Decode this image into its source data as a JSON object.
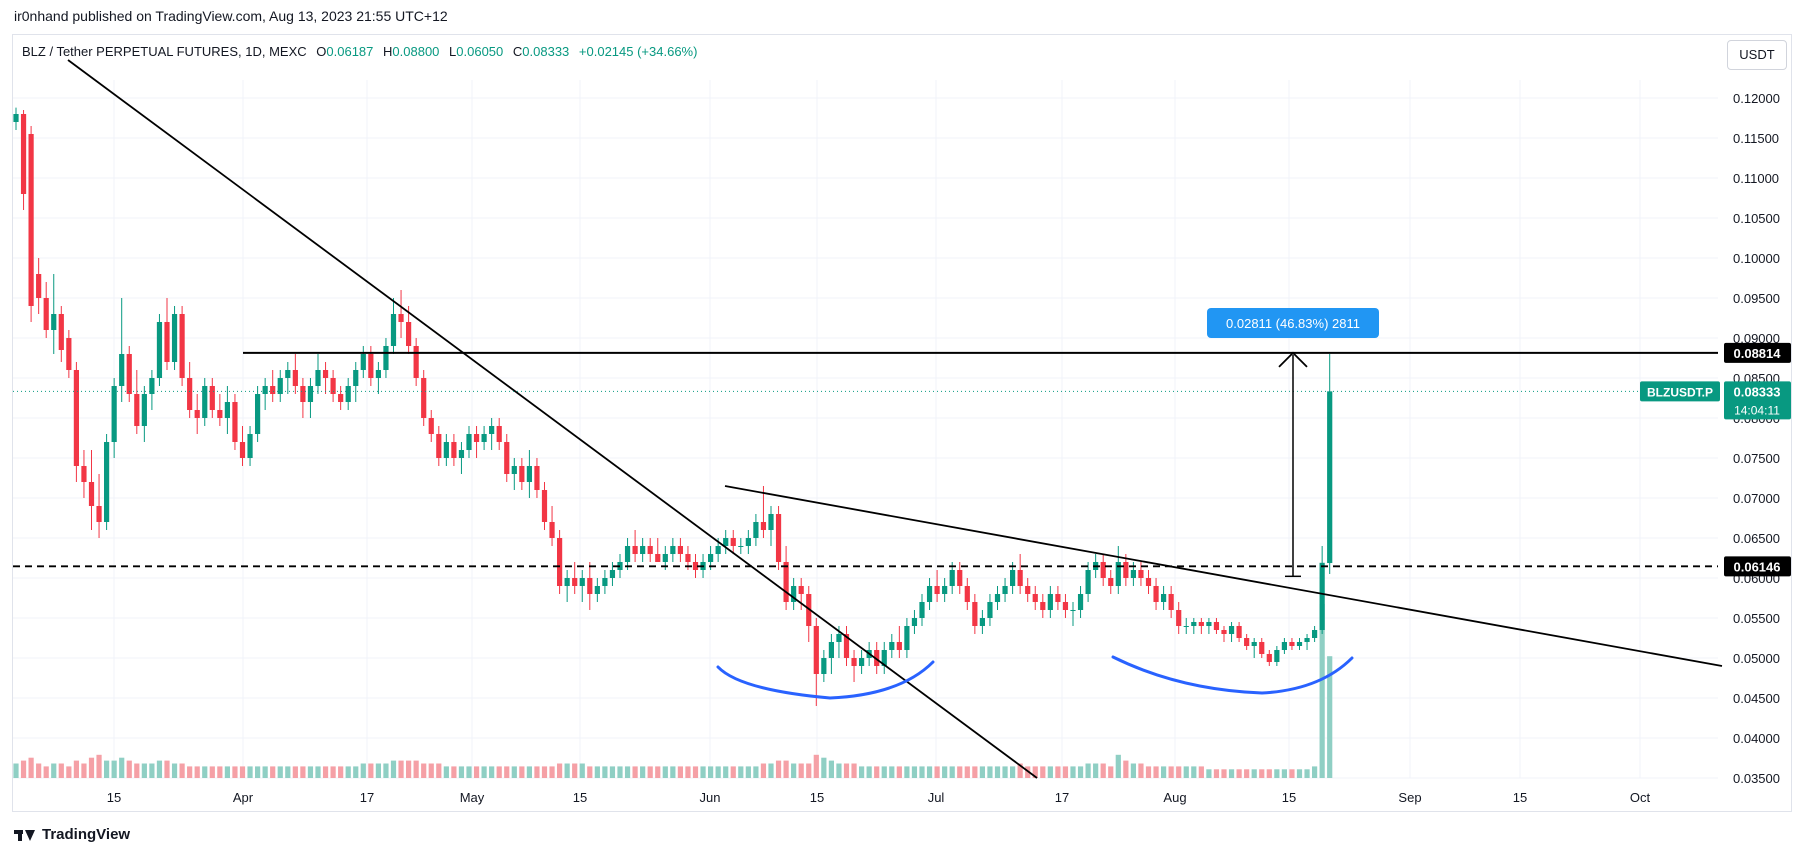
{
  "header": {
    "published": "ir0nhand published on TradingView.com, Aug 13, 2023 21:55 UTC+12"
  },
  "legend": {
    "symbol": "BLZ / Tether PERPETUAL FUTURES, 1D, MEXC",
    "open_label": "O",
    "open": "0.06187",
    "high_label": "H",
    "high": "0.08800",
    "low_label": "L",
    "low": "0.06050",
    "close_label": "C",
    "close": "0.08333",
    "change": "+0.02145 (+34.66%)"
  },
  "unit_button": "USDT",
  "footer": {
    "brand": "TradingView"
  },
  "colors": {
    "up": "#089981",
    "down": "#f23645",
    "up_vol": "#8fcfc4",
    "down_vol": "#f5a0a6",
    "trend": "#000000",
    "curve": "#2962ff",
    "measure": "#2196f3"
  },
  "chart_data": {
    "type": "candlestick",
    "ylim": [
      0.035,
      0.1225
    ],
    "y_ticks": [
      "0.12000",
      "0.11500",
      "0.11000",
      "0.10500",
      "0.10000",
      "0.09500",
      "0.09000",
      "0.08500",
      "0.08000",
      "0.07500",
      "0.07000",
      "0.06500",
      "0.06000",
      "0.05500",
      "0.05000",
      "0.04500",
      "0.04000",
      "0.03500"
    ],
    "x_ticks": [
      "15",
      "Apr",
      "17",
      "May",
      "15",
      "Jun",
      "15",
      "Jul",
      "17",
      "Aug",
      "15",
      "Sep",
      "15",
      "Oct"
    ],
    "price_labels": {
      "resistance": "0.08814",
      "support": "0.06146",
      "symbol_tag": "BLZUSDT.P",
      "last": "0.08333",
      "countdown": "14:04:11"
    },
    "measure_label": "0.02811 (46.83%) 2811",
    "candles": [
      [
        0.117,
        0.1188,
        0.116,
        0.118,
        5
      ],
      [
        0.118,
        0.1185,
        0.106,
        0.108,
        6
      ],
      [
        0.1155,
        0.1165,
        0.092,
        0.094,
        7
      ],
      [
        0.098,
        0.1,
        0.093,
        0.095,
        5
      ],
      [
        0.095,
        0.097,
        0.09,
        0.091,
        4
      ],
      [
        0.091,
        0.098,
        0.088,
        0.093,
        5
      ],
      [
        0.093,
        0.094,
        0.087,
        0.0885,
        5
      ],
      [
        0.09,
        0.091,
        0.085,
        0.086,
        4
      ],
      [
        0.086,
        0.087,
        0.072,
        0.074,
        6
      ],
      [
        0.074,
        0.076,
        0.07,
        0.072,
        5
      ],
      [
        0.072,
        0.076,
        0.066,
        0.069,
        7
      ],
      [
        0.069,
        0.073,
        0.065,
        0.067,
        8
      ],
      [
        0.067,
        0.078,
        0.066,
        0.077,
        6
      ],
      [
        0.077,
        0.085,
        0.075,
        0.084,
        6
      ],
      [
        0.084,
        0.095,
        0.082,
        0.088,
        7
      ],
      [
        0.088,
        0.089,
        0.082,
        0.083,
        6
      ],
      [
        0.083,
        0.086,
        0.078,
        0.079,
        5
      ],
      [
        0.079,
        0.084,
        0.077,
        0.083,
        5
      ],
      [
        0.083,
        0.086,
        0.081,
        0.085,
        5
      ],
      [
        0.085,
        0.093,
        0.084,
        0.092,
        6
      ],
      [
        0.092,
        0.095,
        0.086,
        0.087,
        6
      ],
      [
        0.087,
        0.094,
        0.086,
        0.093,
        5
      ],
      [
        0.093,
        0.094,
        0.084,
        0.085,
        5
      ],
      [
        0.085,
        0.087,
        0.08,
        0.081,
        4
      ],
      [
        0.081,
        0.083,
        0.078,
        0.08,
        4
      ],
      [
        0.08,
        0.085,
        0.079,
        0.084,
        4
      ],
      [
        0.084,
        0.085,
        0.08,
        0.081,
        4
      ],
      [
        0.081,
        0.083,
        0.079,
        0.08,
        4
      ],
      [
        0.08,
        0.084,
        0.078,
        0.082,
        4
      ],
      [
        0.082,
        0.083,
        0.076,
        0.077,
        4
      ],
      [
        0.077,
        0.079,
        0.074,
        0.075,
        4
      ],
      [
        0.075,
        0.079,
        0.074,
        0.078,
        4
      ],
      [
        0.078,
        0.084,
        0.077,
        0.083,
        4
      ],
      [
        0.083,
        0.085,
        0.081,
        0.084,
        4
      ],
      [
        0.084,
        0.086,
        0.082,
        0.083,
        4
      ],
      [
        0.083,
        0.086,
        0.082,
        0.085,
        4
      ],
      [
        0.085,
        0.087,
        0.083,
        0.086,
        4
      ],
      [
        0.086,
        0.088,
        0.083,
        0.084,
        4
      ],
      [
        0.084,
        0.085,
        0.08,
        0.082,
        4
      ],
      [
        0.082,
        0.085,
        0.08,
        0.084,
        4
      ],
      [
        0.084,
        0.088,
        0.083,
        0.086,
        4
      ],
      [
        0.086,
        0.087,
        0.083,
        0.085,
        4
      ],
      [
        0.085,
        0.086,
        0.082,
        0.083,
        4
      ],
      [
        0.083,
        0.084,
        0.081,
        0.082,
        4
      ],
      [
        0.082,
        0.085,
        0.081,
        0.084,
        4
      ],
      [
        0.084,
        0.087,
        0.082,
        0.086,
        4
      ],
      [
        0.086,
        0.089,
        0.085,
        0.088,
        5
      ],
      [
        0.088,
        0.089,
        0.084,
        0.085,
        5
      ],
      [
        0.085,
        0.087,
        0.083,
        0.086,
        5
      ],
      [
        0.086,
        0.09,
        0.085,
        0.089,
        5
      ],
      [
        0.089,
        0.095,
        0.088,
        0.093,
        6
      ],
      [
        0.093,
        0.096,
        0.09,
        0.092,
        6
      ],
      [
        0.092,
        0.094,
        0.088,
        0.089,
        6
      ],
      [
        0.089,
        0.09,
        0.084,
        0.085,
        6
      ],
      [
        0.085,
        0.086,
        0.079,
        0.08,
        5
      ],
      [
        0.08,
        0.081,
        0.077,
        0.078,
        5
      ],
      [
        0.078,
        0.079,
        0.074,
        0.075,
        5
      ],
      [
        0.075,
        0.078,
        0.074,
        0.077,
        4
      ],
      [
        0.077,
        0.078,
        0.074,
        0.075,
        4
      ],
      [
        0.075,
        0.077,
        0.073,
        0.076,
        4
      ],
      [
        0.076,
        0.079,
        0.075,
        0.078,
        4
      ],
      [
        0.078,
        0.079,
        0.075,
        0.077,
        4
      ],
      [
        0.077,
        0.079,
        0.076,
        0.078,
        4
      ],
      [
        0.078,
        0.08,
        0.076,
        0.079,
        4
      ],
      [
        0.079,
        0.08,
        0.076,
        0.077,
        4
      ],
      [
        0.077,
        0.078,
        0.072,
        0.073,
        4
      ],
      [
        0.073,
        0.075,
        0.071,
        0.074,
        4
      ],
      [
        0.074,
        0.075,
        0.071,
        0.072,
        4
      ],
      [
        0.072,
        0.076,
        0.07,
        0.074,
        4
      ],
      [
        0.074,
        0.075,
        0.07,
        0.071,
        4
      ],
      [
        0.071,
        0.072,
        0.066,
        0.067,
        4
      ],
      [
        0.067,
        0.069,
        0.064,
        0.065,
        4
      ],
      [
        0.065,
        0.066,
        0.058,
        0.059,
        5
      ],
      [
        0.059,
        0.061,
        0.057,
        0.06,
        5
      ],
      [
        0.06,
        0.062,
        0.058,
        0.059,
        5
      ],
      [
        0.059,
        0.061,
        0.057,
        0.06,
        5
      ],
      [
        0.06,
        0.062,
        0.056,
        0.058,
        4
      ],
      [
        0.058,
        0.06,
        0.057,
        0.059,
        4
      ],
      [
        0.059,
        0.061,
        0.058,
        0.06,
        4
      ],
      [
        0.06,
        0.062,
        0.059,
        0.061,
        4
      ],
      [
        0.061,
        0.063,
        0.06,
        0.062,
        4
      ],
      [
        0.062,
        0.065,
        0.061,
        0.064,
        4
      ],
      [
        0.064,
        0.066,
        0.062,
        0.063,
        4
      ],
      [
        0.063,
        0.065,
        0.062,
        0.064,
        4
      ],
      [
        0.064,
        0.065,
        0.062,
        0.063,
        4
      ],
      [
        0.063,
        0.065,
        0.062,
        0.062,
        4
      ],
      [
        0.062,
        0.064,
        0.061,
        0.063,
        4
      ],
      [
        0.063,
        0.065,
        0.062,
        0.064,
        4
      ],
      [
        0.064,
        0.065,
        0.062,
        0.063,
        4
      ],
      [
        0.063,
        0.064,
        0.061,
        0.062,
        4
      ],
      [
        0.062,
        0.063,
        0.06,
        0.061,
        4
      ],
      [
        0.061,
        0.063,
        0.06,
        0.062,
        4
      ],
      [
        0.062,
        0.064,
        0.061,
        0.063,
        4
      ],
      [
        0.063,
        0.065,
        0.062,
        0.064,
        4
      ],
      [
        0.064,
        0.066,
        0.063,
        0.065,
        4
      ],
      [
        0.065,
        0.066,
        0.063,
        0.064,
        4
      ],
      [
        0.064,
        0.065,
        0.063,
        0.064,
        4
      ],
      [
        0.064,
        0.066,
        0.063,
        0.065,
        4
      ],
      [
        0.065,
        0.068,
        0.064,
        0.067,
        4
      ],
      [
        0.067,
        0.0715,
        0.065,
        0.066,
        5
      ],
      [
        0.066,
        0.069,
        0.064,
        0.068,
        5
      ],
      [
        0.068,
        0.069,
        0.061,
        0.062,
        6
      ],
      [
        0.062,
        0.064,
        0.056,
        0.057,
        6
      ],
      [
        0.057,
        0.06,
        0.056,
        0.059,
        5
      ],
      [
        0.059,
        0.06,
        0.056,
        0.058,
        5
      ],
      [
        0.058,
        0.059,
        0.052,
        0.054,
        5
      ],
      [
        0.054,
        0.055,
        0.044,
        0.048,
        8
      ],
      [
        0.048,
        0.051,
        0.047,
        0.05,
        7
      ],
      [
        0.05,
        0.053,
        0.048,
        0.052,
        6
      ],
      [
        0.052,
        0.054,
        0.05,
        0.053,
        5
      ],
      [
        0.053,
        0.054,
        0.049,
        0.05,
        5
      ],
      [
        0.05,
        0.051,
        0.047,
        0.049,
        5
      ],
      [
        0.049,
        0.051,
        0.048,
        0.05,
        4
      ],
      [
        0.05,
        0.052,
        0.049,
        0.051,
        4
      ],
      [
        0.051,
        0.052,
        0.048,
        0.049,
        4
      ],
      [
        0.049,
        0.052,
        0.048,
        0.051,
        4
      ],
      [
        0.051,
        0.053,
        0.05,
        0.052,
        4
      ],
      [
        0.052,
        0.054,
        0.05,
        0.051,
        4
      ],
      [
        0.051,
        0.055,
        0.05,
        0.054,
        4
      ],
      [
        0.054,
        0.056,
        0.053,
        0.055,
        4
      ],
      [
        0.055,
        0.058,
        0.054,
        0.057,
        4
      ],
      [
        0.057,
        0.06,
        0.056,
        0.059,
        4
      ],
      [
        0.059,
        0.061,
        0.057,
        0.058,
        4
      ],
      [
        0.058,
        0.06,
        0.057,
        0.059,
        4
      ],
      [
        0.059,
        0.062,
        0.058,
        0.061,
        4
      ],
      [
        0.061,
        0.062,
        0.058,
        0.059,
        4
      ],
      [
        0.059,
        0.06,
        0.056,
        0.057,
        4
      ],
      [
        0.057,
        0.058,
        0.053,
        0.054,
        4
      ],
      [
        0.054,
        0.056,
        0.053,
        0.055,
        4
      ],
      [
        0.055,
        0.058,
        0.054,
        0.057,
        4
      ],
      [
        0.057,
        0.059,
        0.056,
        0.058,
        4
      ],
      [
        0.058,
        0.06,
        0.057,
        0.059,
        4
      ],
      [
        0.059,
        0.062,
        0.058,
        0.061,
        4
      ],
      [
        0.061,
        0.063,
        0.058,
        0.059,
        5
      ],
      [
        0.059,
        0.06,
        0.057,
        0.058,
        4
      ],
      [
        0.058,
        0.059,
        0.056,
        0.057,
        4
      ],
      [
        0.057,
        0.058,
        0.055,
        0.056,
        4
      ],
      [
        0.056,
        0.059,
        0.055,
        0.058,
        4
      ],
      [
        0.058,
        0.059,
        0.056,
        0.057,
        4
      ],
      [
        0.057,
        0.058,
        0.055,
        0.056,
        4
      ],
      [
        0.056,
        0.057,
        0.054,
        0.056,
        4
      ],
      [
        0.056,
        0.059,
        0.055,
        0.058,
        4
      ],
      [
        0.058,
        0.062,
        0.057,
        0.061,
        5
      ],
      [
        0.061,
        0.063,
        0.06,
        0.062,
        5
      ],
      [
        0.062,
        0.063,
        0.059,
        0.06,
        5
      ],
      [
        0.06,
        0.061,
        0.058,
        0.059,
        4
      ],
      [
        0.059,
        0.064,
        0.058,
        0.062,
        8
      ],
      [
        0.062,
        0.063,
        0.059,
        0.06,
        6
      ],
      [
        0.06,
        0.062,
        0.059,
        0.061,
        5
      ],
      [
        0.061,
        0.062,
        0.059,
        0.06,
        5
      ],
      [
        0.06,
        0.061,
        0.058,
        0.059,
        4
      ],
      [
        0.059,
        0.06,
        0.056,
        0.057,
        4
      ],
      [
        0.057,
        0.059,
        0.056,
        0.058,
        4
      ],
      [
        0.058,
        0.059,
        0.055,
        0.056,
        4
      ],
      [
        0.056,
        0.057,
        0.053,
        0.054,
        4
      ],
      [
        0.054,
        0.055,
        0.053,
        0.054,
        4
      ],
      [
        0.054,
        0.055,
        0.053,
        0.0545,
        4
      ],
      [
        0.0545,
        0.055,
        0.053,
        0.054,
        4
      ],
      [
        0.054,
        0.055,
        0.053,
        0.0545,
        3
      ],
      [
        0.0545,
        0.055,
        0.053,
        0.0535,
        3
      ],
      [
        0.0535,
        0.054,
        0.052,
        0.053,
        3
      ],
      [
        0.053,
        0.0545,
        0.052,
        0.054,
        3
      ],
      [
        0.054,
        0.0545,
        0.052,
        0.0525,
        3
      ],
      [
        0.0525,
        0.053,
        0.051,
        0.0515,
        3
      ],
      [
        0.0515,
        0.0525,
        0.05,
        0.052,
        3
      ],
      [
        0.052,
        0.0525,
        0.05,
        0.0505,
        3
      ],
      [
        0.0505,
        0.051,
        0.049,
        0.0495,
        3
      ],
      [
        0.0495,
        0.0515,
        0.049,
        0.051,
        3
      ],
      [
        0.051,
        0.0525,
        0.0505,
        0.052,
        3
      ],
      [
        0.052,
        0.0525,
        0.051,
        0.0515,
        3
      ],
      [
        0.0515,
        0.0525,
        0.051,
        0.052,
        3
      ],
      [
        0.052,
        0.053,
        0.051,
        0.0525,
        3
      ],
      [
        0.0525,
        0.054,
        0.052,
        0.0535,
        4
      ],
      [
        0.0535,
        0.064,
        0.053,
        0.0619,
        60
      ],
      [
        0.06187,
        0.088,
        0.0605,
        0.08333,
        42
      ]
    ]
  }
}
